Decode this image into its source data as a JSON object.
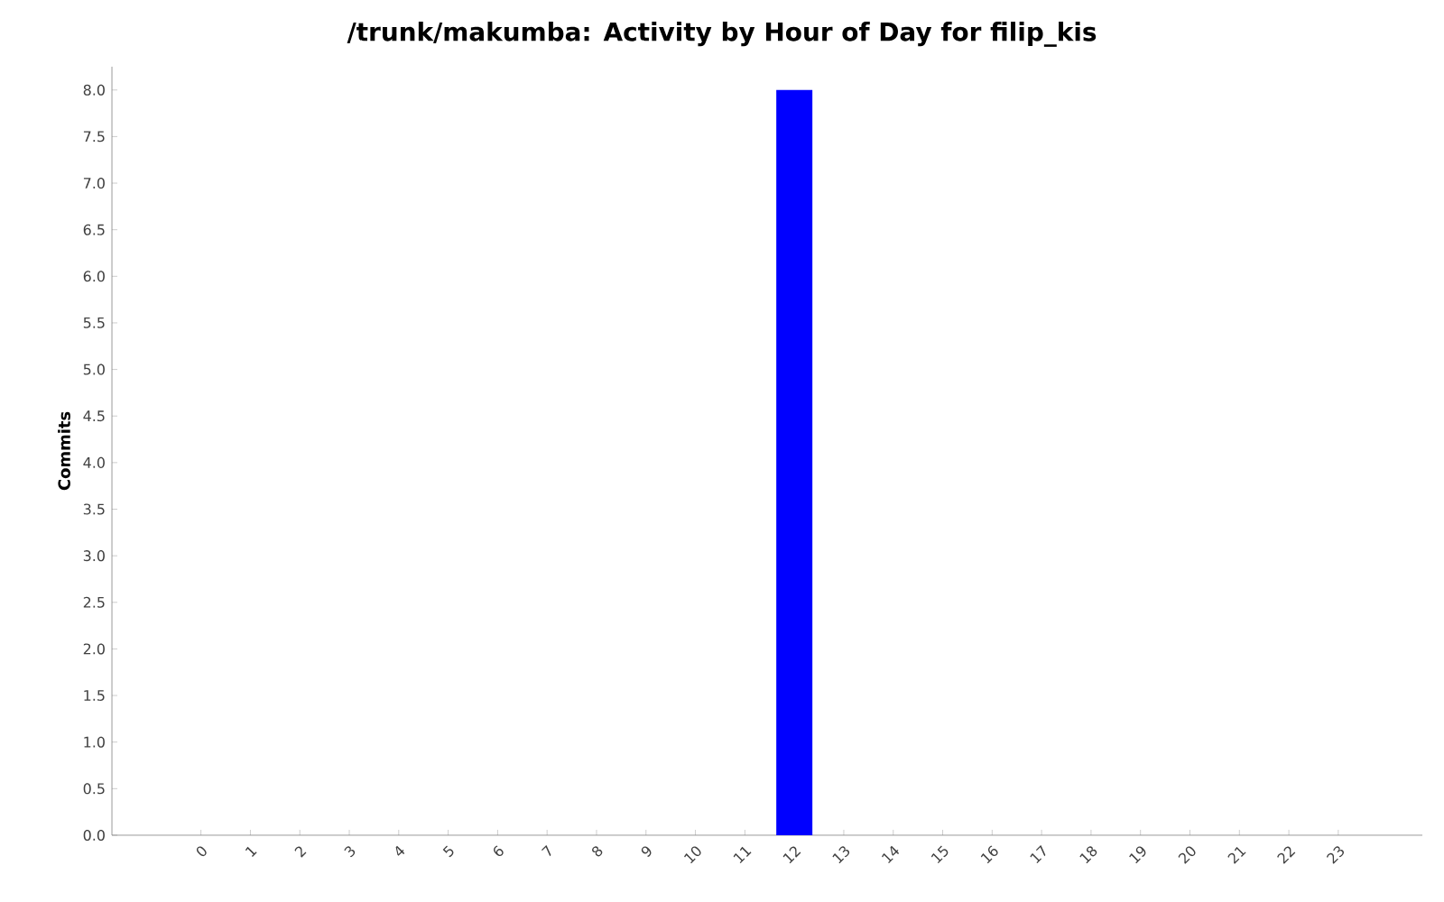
{
  "chart_data": {
    "type": "bar",
    "title": "/trunk/makumba: Activity by Hour of Day for filip_kis",
    "ylabel": "Commits",
    "categories": [
      "0",
      "1",
      "2",
      "3",
      "4",
      "5",
      "6",
      "7",
      "8",
      "9",
      "10",
      "11",
      "12",
      "13",
      "14",
      "15",
      "16",
      "17",
      "18",
      "19",
      "20",
      "21",
      "22",
      "23"
    ],
    "values": [
      0,
      0,
      0,
      0,
      0,
      0,
      0,
      0,
      0,
      0,
      0,
      0,
      8,
      0,
      0,
      0,
      0,
      0,
      0,
      0,
      0,
      0,
      0,
      0
    ],
    "color": "#0000ff",
    "ylim": [
      0,
      8.25
    ],
    "yticks": [
      {
        "value": 0,
        "label": "0.0"
      },
      {
        "value": 0.5,
        "label": "0.5"
      },
      {
        "value": 1,
        "label": "1.0"
      },
      {
        "value": 1.5,
        "label": "1.5"
      },
      {
        "value": 2,
        "label": "2.0"
      },
      {
        "value": 2.5,
        "label": "2.5"
      },
      {
        "value": 3,
        "label": "3.0"
      },
      {
        "value": 3.5,
        "label": "3.5"
      },
      {
        "value": 4,
        "label": "4.0"
      },
      {
        "value": 4.5,
        "label": "4.5"
      },
      {
        "value": 5,
        "label": "5.0"
      },
      {
        "value": 5.5,
        "label": "5.5"
      },
      {
        "value": 6,
        "label": "6.0"
      },
      {
        "value": 6.5,
        "label": "6.5"
      },
      {
        "value": 7,
        "label": "7.0"
      },
      {
        "value": 7.5,
        "label": "7.5"
      },
      {
        "value": 8,
        "label": "8.0"
      }
    ],
    "grid": false
  }
}
